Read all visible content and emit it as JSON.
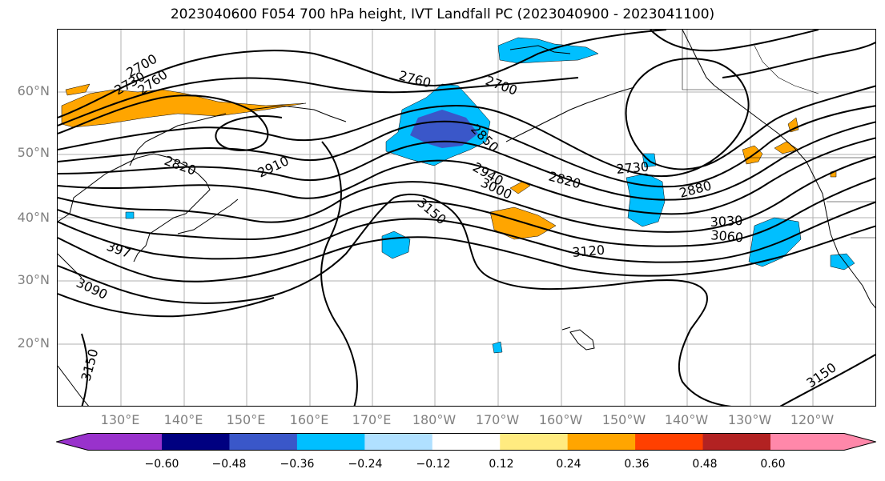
{
  "title": "2023040600 F054 700 hPa height, IVT Landfall PC (2023040900 - 2023041100)",
  "lat_labels": [
    "60°N",
    "50°N",
    "40°N",
    "30°N",
    "20°N"
  ],
  "lon_labels": [
    "130°E",
    "140°E",
    "150°E",
    "160°E",
    "170°E",
    "180°W",
    "170°W",
    "160°W",
    "150°W",
    "140°W",
    "130°W",
    "120°W"
  ],
  "contour_labels": [
    "2700",
    "2730",
    "2760",
    "2760",
    "2700",
    "2820",
    "2910",
    "2850",
    "2940",
    "3000",
    "2820",
    "2730",
    "2880",
    "3030",
    "3060",
    "3120",
    "3150",
    "3090",
    "3150",
    "3150",
    "397"
  ],
  "colorbar": {
    "colors": [
      "#9932cc",
      "#000080",
      "#3a57c9",
      "#00bfff",
      "#b0e0ff",
      "#ffffff",
      "#ffeb80",
      "#ffa500",
      "#ff4000",
      "#b22222",
      "#ff88aa"
    ],
    "tick_labels": [
      "−0.60",
      "−0.48",
      "−0.36",
      "−0.24",
      "−0.12",
      "0.12",
      "0.24",
      "0.36",
      "0.48",
      "0.60"
    ]
  },
  "fill_colors": {
    "orange": "#ffa500",
    "light_blue": "#00bfff",
    "dark_blue": "#3a57c9"
  }
}
